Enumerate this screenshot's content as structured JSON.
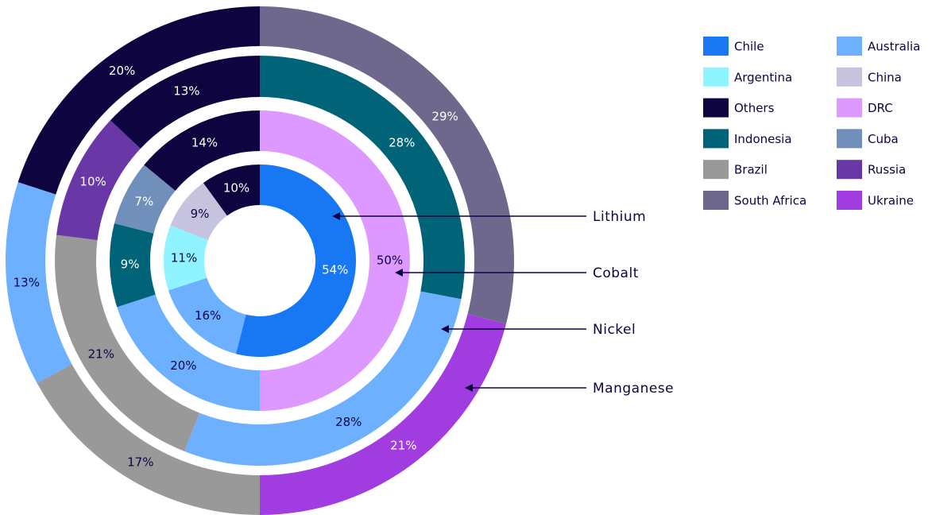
{
  "chart_data": {
    "type": "nested-donut",
    "legend": [
      {
        "name": "Chile",
        "color": "#1877f2"
      },
      {
        "name": "Australia",
        "color": "#6cb0ff"
      },
      {
        "name": "Argentina",
        "color": "#8ff4ff"
      },
      {
        "name": "China",
        "color": "#c5c3dd"
      },
      {
        "name": "Others",
        "color": "#0d0440"
      },
      {
        "name": "DRC",
        "color": "#dd99ff"
      },
      {
        "name": "Indonesia",
        "color": "#006378"
      },
      {
        "name": "Cuba",
        "color": "#7090bb"
      },
      {
        "name": "Brazil",
        "color": "#999999"
      },
      {
        "name": "Russia",
        "color": "#6a38a6"
      },
      {
        "name": "South Africa",
        "color": "#6e688c"
      },
      {
        "name": "Ukraine",
        "color": "#a13ce0"
      }
    ],
    "series": [
      {
        "name": "Lithium",
        "categories": [
          "Chile",
          "Australia",
          "Argentina",
          "China",
          "Others"
        ],
        "values": [
          54,
          16,
          11,
          9,
          10
        ],
        "value_labels": [
          "54%",
          "16%",
          "11%",
          "9%",
          "10%"
        ]
      },
      {
        "name": "Cobalt",
        "categories": [
          "DRC",
          "Australia",
          "Indonesia",
          "Cuba",
          "Others"
        ],
        "values": [
          50,
          20,
          9,
          7,
          14
        ],
        "value_labels": [
          "50%",
          "20%",
          "9%",
          "7%",
          "14%"
        ]
      },
      {
        "name": "Nickel",
        "categories": [
          "Indonesia",
          "Australia",
          "Brazil",
          "Russia",
          "Others"
        ],
        "values": [
          28,
          28,
          21,
          10,
          13
        ],
        "value_labels": [
          "28%",
          "28%",
          "21%",
          "10%",
          "13%"
        ]
      },
      {
        "name": "Manganese",
        "categories": [
          "South Africa",
          "Ukraine",
          "Brazil",
          "Australia",
          "Others"
        ],
        "values": [
          29,
          21,
          17,
          13,
          20
        ],
        "value_labels": [
          "29%",
          "21%",
          "17%",
          "13%",
          "20%"
        ]
      }
    ]
  }
}
